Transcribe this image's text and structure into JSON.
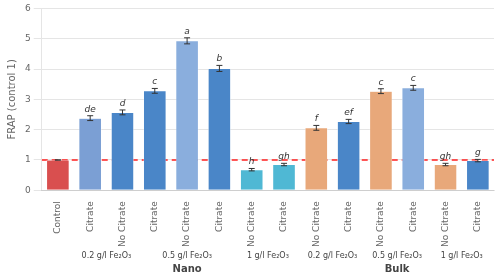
{
  "chart_data": {
    "type": "bar",
    "categories": [
      "Control",
      "Citrate",
      "No Citrate",
      "Citrate",
      "No Citrate",
      "Citrate",
      "No Citrate",
      "Citrate",
      "No Citrate",
      "Citrate",
      "No Citrate",
      "Citrate",
      "No Citrate",
      "Citrate"
    ],
    "values": [
      1.0,
      2.38,
      2.57,
      3.28,
      4.93,
      4.02,
      0.68,
      0.85,
      2.06,
      2.27,
      3.27,
      3.38,
      0.85,
      0.98
    ],
    "errors": [
      0.0,
      0.08,
      0.08,
      0.08,
      0.1,
      0.1,
      0.04,
      0.04,
      0.08,
      0.07,
      0.08,
      0.08,
      0.04,
      0.04
    ],
    "colors": [
      "#d94f4f",
      "#7b9fd4",
      "#4a86c8",
      "#4a86c8",
      "#8aaedd",
      "#4a86c8",
      "#4fb8d4",
      "#4fb8d4",
      "#e8a87a",
      "#4a86c8",
      "#e8a87a",
      "#8aaedd",
      "#e8a87a",
      "#4a86c8"
    ],
    "letters": [
      null,
      "de",
      "d",
      "c",
      "a",
      "b",
      "h",
      "gh",
      "f",
      "ef",
      "c",
      "c",
      "gh",
      "g"
    ],
    "groups": [
      {
        "label": "0.2 g/l Fe₂O₃",
        "first": 1,
        "last": 2
      },
      {
        "label": "0.5 g/l Fe₂O₃",
        "first": 3,
        "last": 5
      },
      {
        "label": "1 g/l Fe₂O₃",
        "first": 6,
        "last": 7
      },
      {
        "label": "0.2 g/l Fe₂O₃",
        "first": 8,
        "last": 9
      },
      {
        "label": "0.5 g/l Fe₂O₃",
        "first": 10,
        "last": 11
      },
      {
        "label": "1 g/l Fe₂O₃",
        "first": 12,
        "last": 13
      }
    ],
    "sections": [
      {
        "label": "Nano",
        "first": 1,
        "last": 7
      },
      {
        "label": "Bulk",
        "first": 8,
        "last": 13
      }
    ],
    "reference_line": {
      "y": 1.0,
      "color": "#ff2020",
      "line_style": "dashed"
    },
    "ylabel": "FRAP (control 1)",
    "ylim": [
      0,
      6
    ],
    "yticks": [
      0,
      1,
      2,
      3,
      4,
      5,
      6
    ],
    "grid": true
  }
}
